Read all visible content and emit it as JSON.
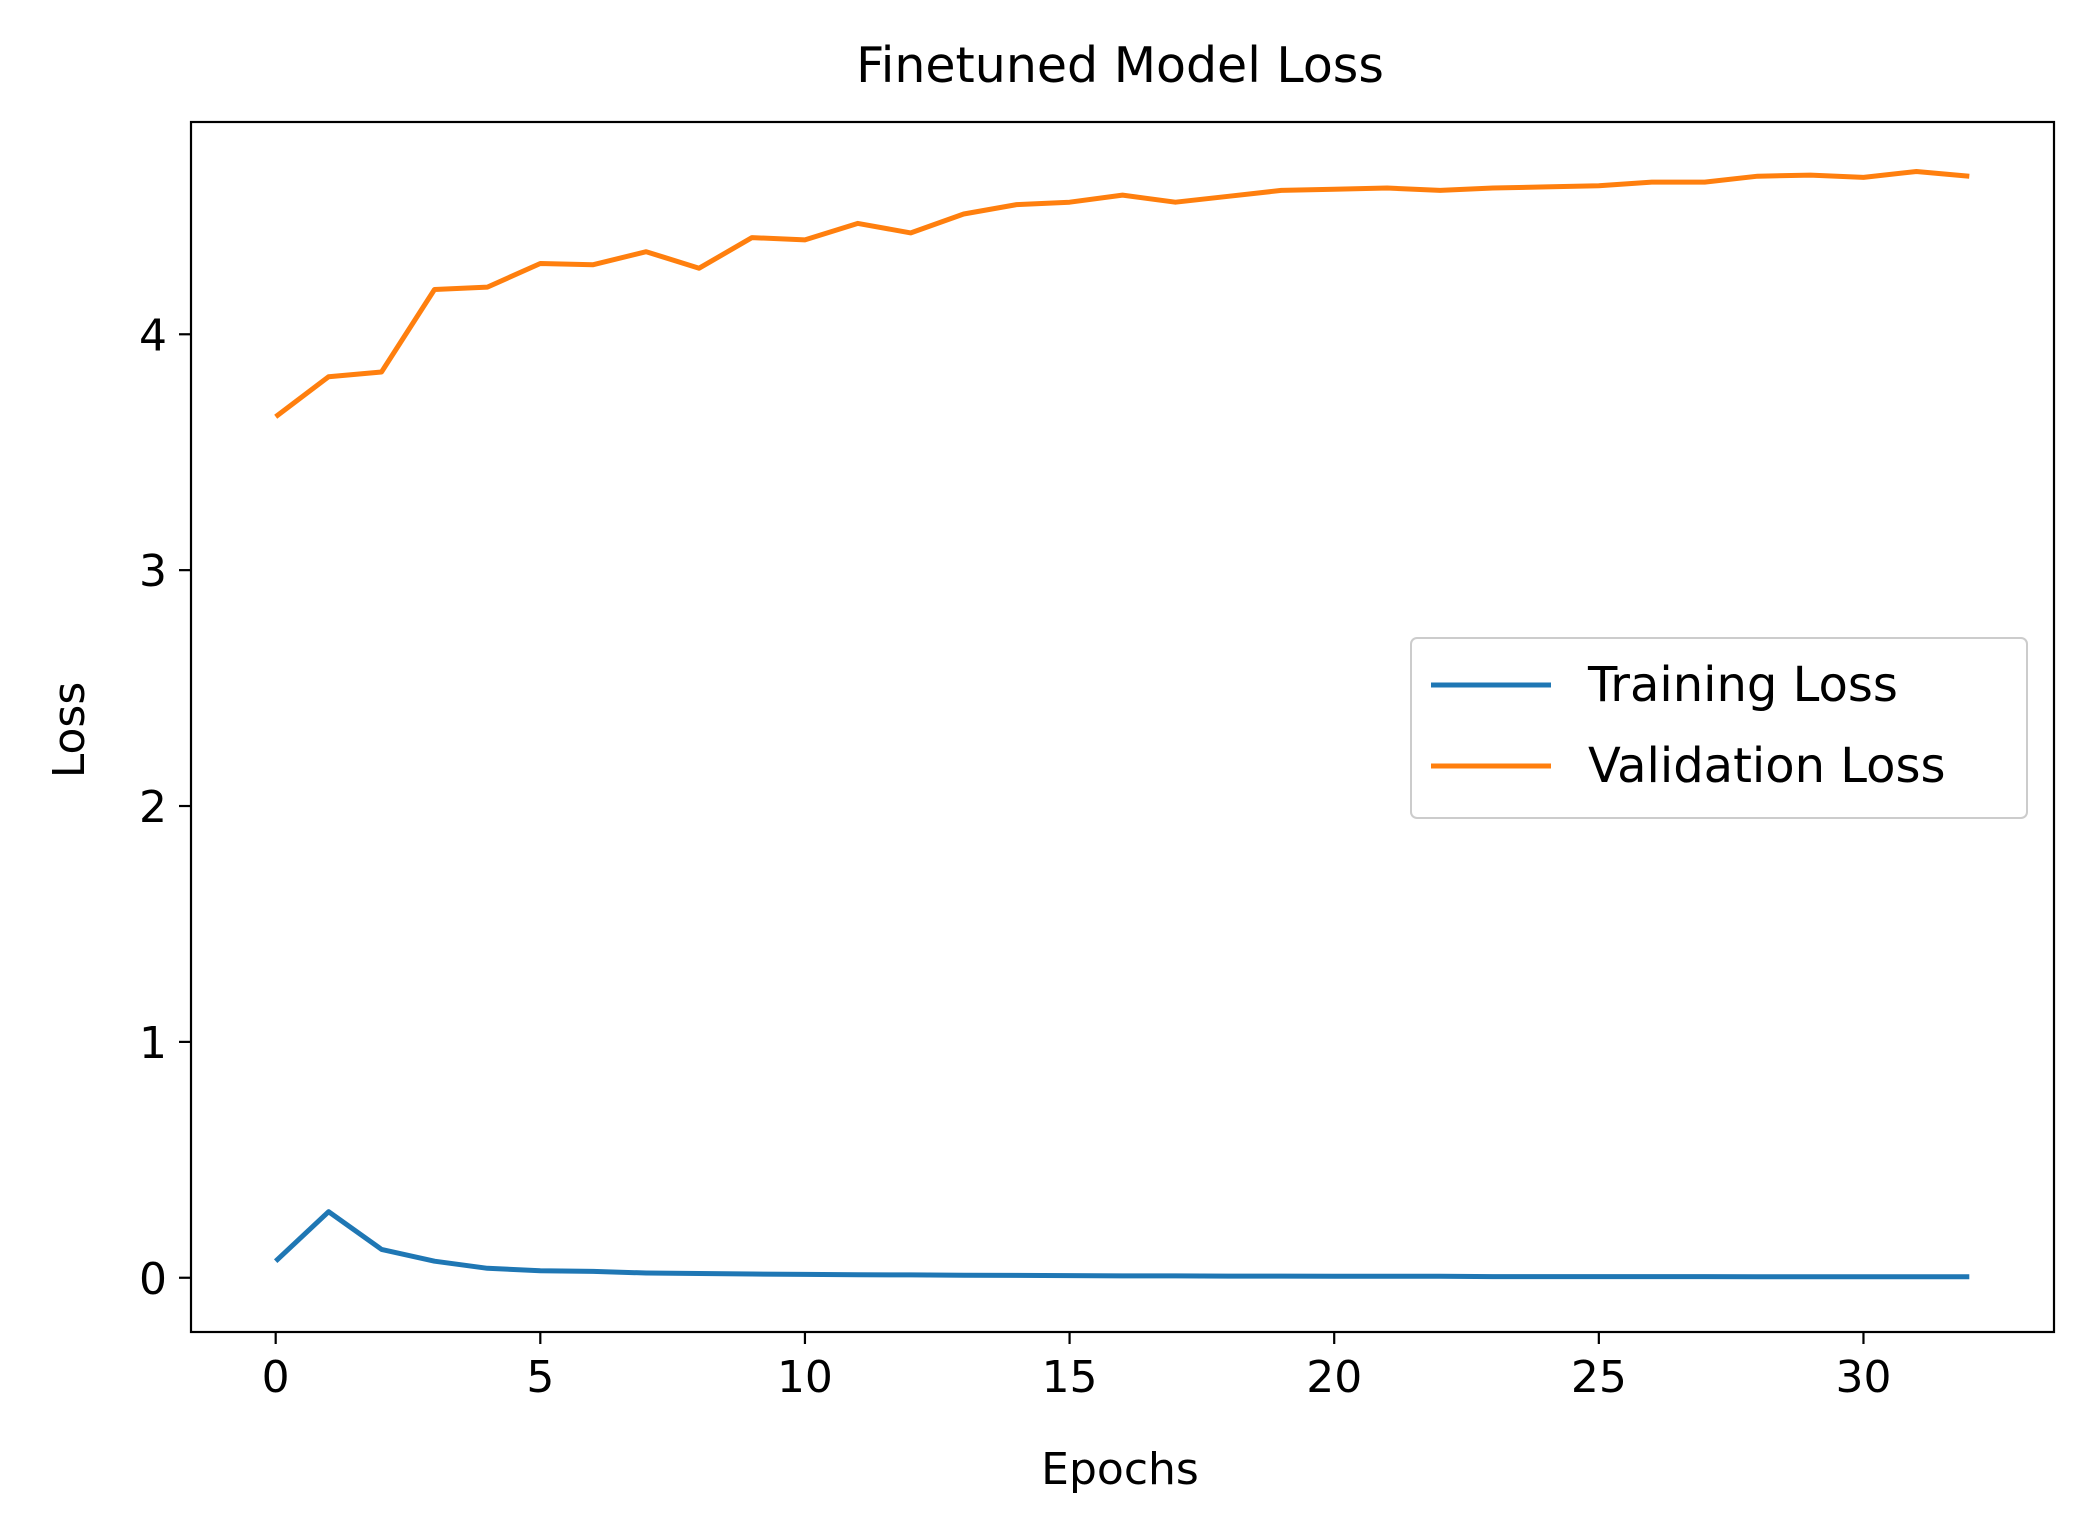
{
  "chart_data": {
    "type": "line",
    "title": "Finetuned Model Loss",
    "xlabel": "Epochs",
    "ylabel": "Loss",
    "xlim": [
      -1.6,
      33.6
    ],
    "ylim": [
      -0.23,
      4.9
    ],
    "xticks": [
      0,
      5,
      10,
      15,
      20,
      25,
      30
    ],
    "xtick_labels": [
      "0",
      "5",
      "10",
      "15",
      "20",
      "25",
      "30"
    ],
    "yticks": [
      0,
      1,
      2,
      3,
      4
    ],
    "ytick_labels": [
      "0",
      "1",
      "2",
      "3",
      "4"
    ],
    "grid": false,
    "legend_position": "center-right",
    "x": [
      0,
      1,
      2,
      3,
      4,
      5,
      6,
      7,
      8,
      9,
      10,
      11,
      12,
      13,
      14,
      15,
      16,
      17,
      18,
      19,
      20,
      21,
      22,
      23,
      24,
      25,
      26,
      27,
      28,
      29,
      30,
      31,
      32
    ],
    "series": [
      {
        "name": "Training Loss",
        "color": "#1f77b4",
        "values": [
          0.07,
          0.28,
          0.12,
          0.07,
          0.04,
          0.03,
          0.027,
          0.02,
          0.018,
          0.016,
          0.014,
          0.013,
          0.012,
          0.011,
          0.01,
          0.009,
          0.008,
          0.008,
          0.007,
          0.007,
          0.006,
          0.006,
          0.006,
          0.005,
          0.005,
          0.005,
          0.005,
          0.005,
          0.004,
          0.004,
          0.004,
          0.004,
          0.004
        ]
      },
      {
        "name": "Validation Loss",
        "color": "#ff7f0e",
        "values": [
          3.65,
          3.82,
          3.84,
          4.19,
          4.2,
          4.3,
          4.295,
          4.35,
          4.28,
          4.41,
          4.4,
          4.47,
          4.43,
          4.51,
          4.55,
          4.56,
          4.59,
          4.56,
          4.585,
          4.61,
          4.615,
          4.62,
          4.61,
          4.62,
          4.625,
          4.63,
          4.645,
          4.645,
          4.67,
          4.675,
          4.665,
          4.69,
          4.67
        ]
      }
    ]
  }
}
